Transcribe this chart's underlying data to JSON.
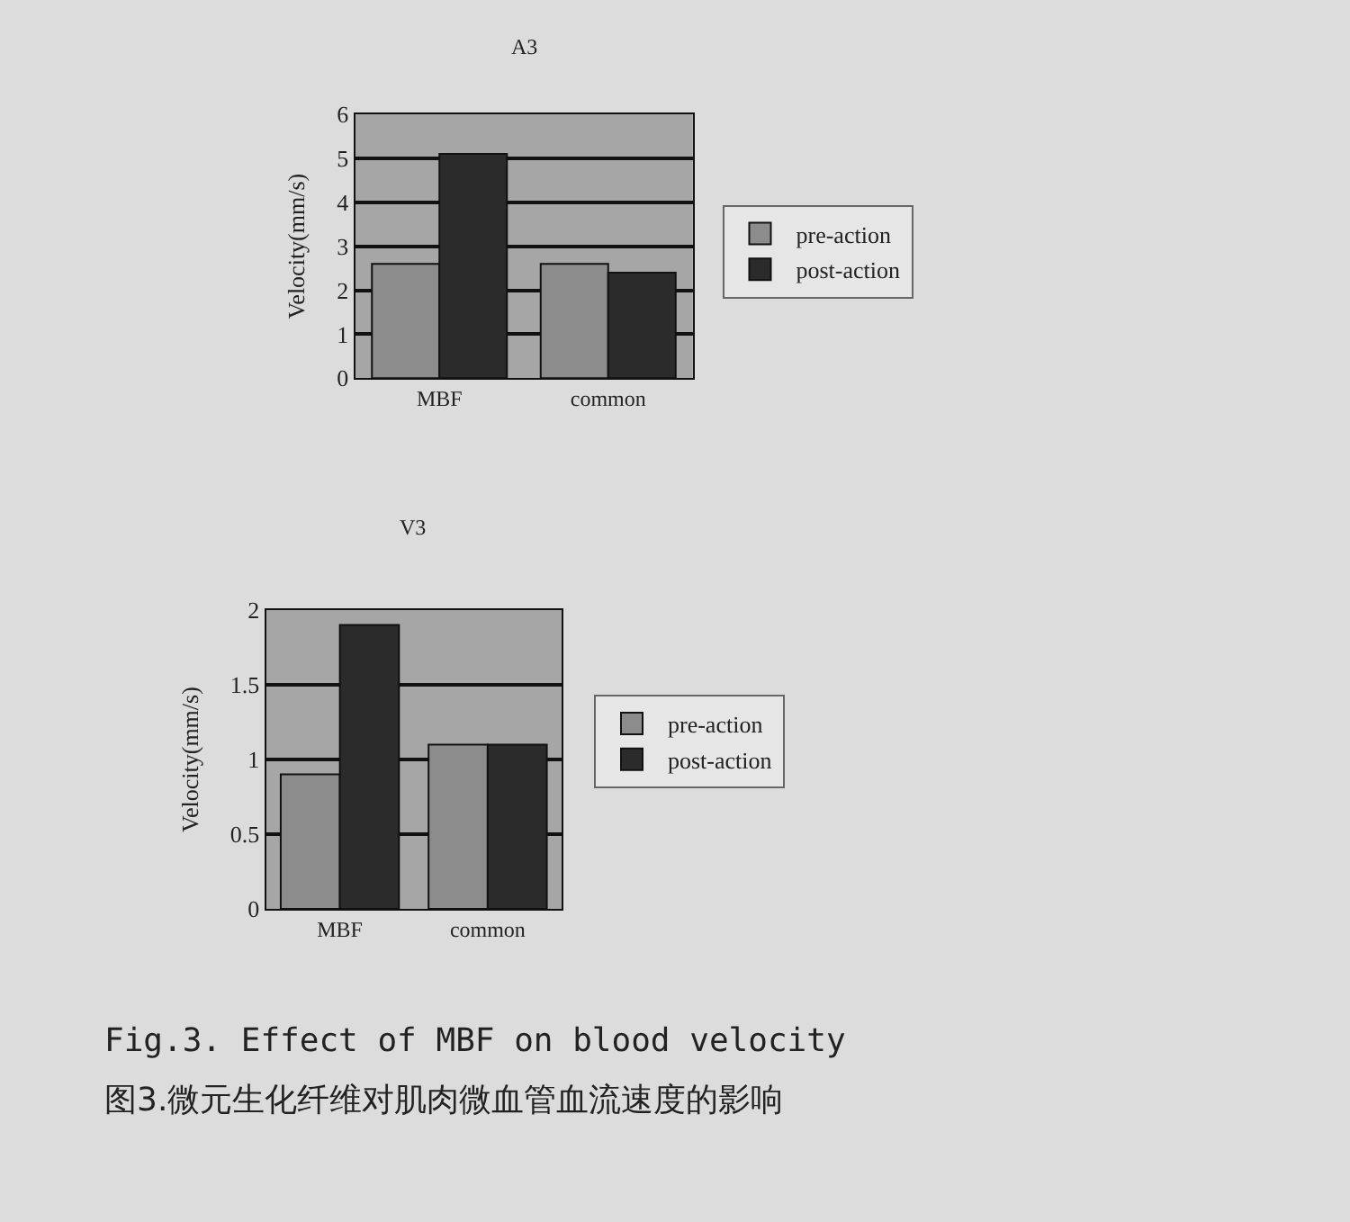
{
  "chart_data": [
    {
      "type": "bar",
      "title": "A3",
      "ylabel": "Velocity(mm/s)",
      "categories": [
        "MBF",
        "common"
      ],
      "series": [
        {
          "name": "pre-action",
          "color": "#8c8c8c",
          "values": [
            2.6,
            2.6
          ]
        },
        {
          "name": "post-action",
          "color": "#2b2b2b",
          "values": [
            5.1,
            2.4
          ]
        }
      ],
      "ylim": [
        0,
        6
      ],
      "yticks": [
        0,
        1,
        2,
        3,
        4,
        5,
        6
      ],
      "grid": "y",
      "legend": "right"
    },
    {
      "type": "bar",
      "title": "V3",
      "ylabel": "Velocity(mm/s)",
      "categories": [
        "MBF",
        "common"
      ],
      "series": [
        {
          "name": "pre-action",
          "color": "#8c8c8c",
          "values": [
            0.9,
            1.1
          ]
        },
        {
          "name": "post-action",
          "color": "#2b2b2b",
          "values": [
            1.9,
            1.1
          ]
        }
      ],
      "ylim": [
        0,
        2
      ],
      "yticks": [
        0,
        0.5,
        1,
        1.5,
        2
      ],
      "grid": "y",
      "legend": "right",
      "annotations": [
        "Fig.3. Effect of MBF on blood velocity",
        "图3.微元生化纤维对肌肉微血管血流速度的影响"
      ]
    }
  ]
}
